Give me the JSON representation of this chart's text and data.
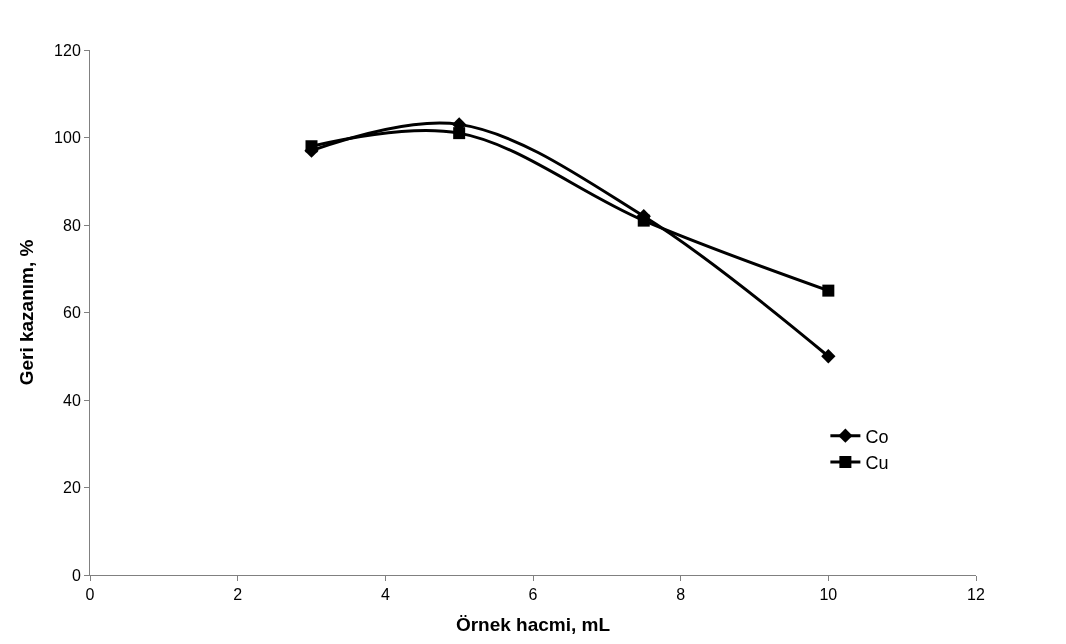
{
  "chart_data": {
    "type": "line",
    "xlabel": "Örnek hacmi, mL",
    "ylabel": "Geri kazanım, %",
    "x": [
      3,
      5,
      7.5,
      10
    ],
    "series": [
      {
        "name": "Co",
        "color": "#000000",
        "marker": "diamond",
        "values": [
          97,
          103,
          82,
          50
        ]
      },
      {
        "name": "Cu",
        "color": "#000000",
        "marker": "square",
        "values": [
          98,
          101,
          81,
          65
        ]
      }
    ],
    "xlim": [
      0,
      12
    ],
    "xticks": [
      0,
      2,
      4,
      6,
      8,
      10,
      12
    ],
    "ylim": [
      0,
      120
    ],
    "yticks": [
      0,
      20,
      40,
      60,
      80,
      100,
      120
    ],
    "legend": "right",
    "line_style": "solid"
  }
}
